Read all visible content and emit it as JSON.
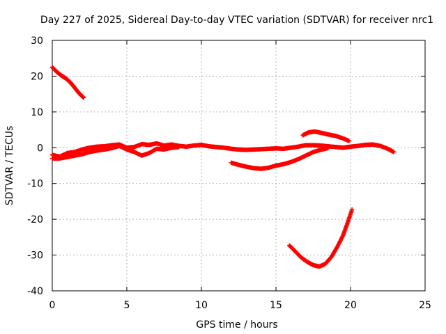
{
  "chart_data": {
    "type": "scatter",
    "title": "Day 227 of 2025, Sidereal Day-to-day VTEC variation (SDTVAR) for receiver nrc1",
    "xlabel": "GPS time / hours",
    "ylabel": "SDTVAR / TECUs",
    "xlim": [
      0,
      25
    ],
    "ylim": [
      -40,
      30
    ],
    "xticks": [
      "0",
      "5",
      "10",
      "15",
      "20",
      "25"
    ],
    "xtick_values": [
      0,
      5,
      10,
      15,
      20,
      25
    ],
    "yticks": [
      "30",
      "20",
      "10",
      "0",
      "-10",
      "-20",
      "-30",
      "-40"
    ],
    "ytick_values": [
      30,
      20,
      10,
      0,
      -10,
      -20,
      -30,
      -40
    ],
    "grid": true,
    "marker": "+",
    "color": "#ff0000",
    "series": [
      {
        "name": "early-high-arc",
        "points": [
          [
            0.0,
            22.5
          ],
          [
            0.3,
            21.2
          ],
          [
            0.6,
            20.2
          ],
          [
            0.9,
            19.4
          ],
          [
            1.2,
            18.3
          ],
          [
            1.5,
            16.8
          ],
          [
            1.8,
            15.2
          ],
          [
            2.1,
            14.0
          ]
        ]
      },
      {
        "name": "main-trace",
        "points": [
          [
            0.0,
            -2.0
          ],
          [
            0.5,
            -2.5
          ],
          [
            1.0,
            -1.5
          ],
          [
            1.5,
            -1.2
          ],
          [
            2.0,
            -0.5
          ],
          [
            2.5,
            0.0
          ],
          [
            3.0,
            0.3
          ],
          [
            3.5,
            0.4
          ],
          [
            4.0,
            0.7
          ],
          [
            4.5,
            0.9
          ],
          [
            5.0,
            0.0
          ],
          [
            5.5,
            0.2
          ],
          [
            6.0,
            1.0
          ],
          [
            6.5,
            0.8
          ],
          [
            7.0,
            1.2
          ],
          [
            7.5,
            0.6
          ],
          [
            8.0,
            0.9
          ],
          [
            8.5,
            0.5
          ],
          [
            9.0,
            0.3
          ],
          [
            9.5,
            0.6
          ],
          [
            10.0,
            0.8
          ],
          [
            10.5,
            0.4
          ],
          [
            11.0,
            0.2
          ],
          [
            11.5,
            0.0
          ],
          [
            12.0,
            -0.3
          ],
          [
            12.5,
            -0.5
          ],
          [
            13.0,
            -0.6
          ],
          [
            13.5,
            -0.5
          ],
          [
            14.0,
            -0.4
          ],
          [
            14.5,
            -0.3
          ],
          [
            15.0,
            -0.2
          ],
          [
            15.5,
            -0.3
          ],
          [
            16.0,
            0.0
          ],
          [
            16.5,
            0.3
          ],
          [
            17.0,
            0.7
          ],
          [
            17.5,
            0.7
          ],
          [
            18.0,
            0.6
          ],
          [
            18.5,
            0.4
          ],
          [
            19.0,
            0.2
          ],
          [
            19.5,
            0.0
          ],
          [
            20.0,
            0.3
          ],
          [
            20.5,
            0.5
          ],
          [
            21.0,
            0.8
          ],
          [
            21.5,
            0.9
          ],
          [
            22.0,
            0.5
          ],
          [
            22.5,
            -0.3
          ],
          [
            22.9,
            -1.2
          ]
        ]
      },
      {
        "name": "early-low-band",
        "points": [
          [
            0.0,
            -3.0
          ],
          [
            0.5,
            -3.0
          ],
          [
            1.0,
            -2.6
          ],
          [
            1.5,
            -2.2
          ],
          [
            2.0,
            -1.8
          ],
          [
            2.5,
            -1.2
          ],
          [
            3.0,
            -0.8
          ],
          [
            3.5,
            -0.5
          ],
          [
            4.0,
            -0.1
          ],
          [
            4.5,
            0.5
          ],
          [
            5.0,
            -0.5
          ],
          [
            5.5,
            -1.2
          ],
          [
            6.0,
            -2.2
          ],
          [
            6.5,
            -1.5
          ],
          [
            7.0,
            -0.3
          ],
          [
            7.5,
            -0.5
          ],
          [
            8.0,
            0.0
          ],
          [
            8.5,
            0.2
          ]
        ]
      },
      {
        "name": "midday-dip",
        "points": [
          [
            12.0,
            -4.2
          ],
          [
            12.5,
            -4.8
          ],
          [
            13.0,
            -5.3
          ],
          [
            13.5,
            -5.7
          ],
          [
            14.0,
            -5.9
          ],
          [
            14.5,
            -5.6
          ],
          [
            15.0,
            -5.0
          ],
          [
            15.5,
            -4.6
          ],
          [
            16.0,
            -4.0
          ],
          [
            16.5,
            -3.2
          ],
          [
            17.0,
            -2.2
          ],
          [
            17.5,
            -1.2
          ],
          [
            18.0,
            -0.6
          ],
          [
            18.5,
            -0.1
          ]
        ]
      },
      {
        "name": "afternoon-hump",
        "points": [
          [
            16.8,
            3.5
          ],
          [
            17.2,
            4.3
          ],
          [
            17.6,
            4.5
          ],
          [
            18.0,
            4.2
          ],
          [
            18.5,
            3.7
          ],
          [
            19.0,
            3.3
          ],
          [
            19.5,
            2.6
          ],
          [
            19.9,
            1.9
          ]
        ]
      },
      {
        "name": "late-low-arc",
        "points": [
          [
            15.9,
            -27.3
          ],
          [
            16.3,
            -29.0
          ],
          [
            16.7,
            -30.7
          ],
          [
            17.1,
            -31.9
          ],
          [
            17.5,
            -32.8
          ],
          [
            17.9,
            -33.2
          ],
          [
            18.3,
            -32.5
          ],
          [
            18.7,
            -30.6
          ],
          [
            19.1,
            -27.8
          ],
          [
            19.5,
            -24.5
          ],
          [
            19.8,
            -21.0
          ],
          [
            20.1,
            -17.3
          ]
        ]
      }
    ]
  }
}
